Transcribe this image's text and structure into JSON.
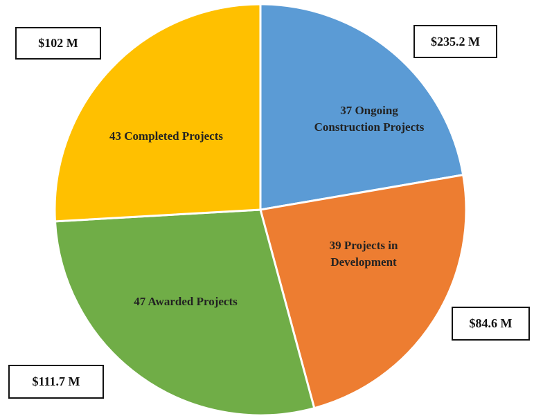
{
  "chart_data": {
    "type": "pie",
    "values": [
      37,
      39,
      47,
      43
    ],
    "value_labels": [
      "37 Ongoing Construction Projects",
      "39 Projects in Development",
      "47 Awarded Projects",
      "43 Completed Projects"
    ],
    "colors": [
      "#5b9bd5",
      "#ed7d31",
      "#70ad47",
      "#ffc000"
    ],
    "amounts": [
      235.2,
      84.6,
      111.7,
      102
    ],
    "amount_labels": [
      "$235.2 M",
      "$84.6 M",
      "$111.7 M",
      "$102 M"
    ]
  }
}
